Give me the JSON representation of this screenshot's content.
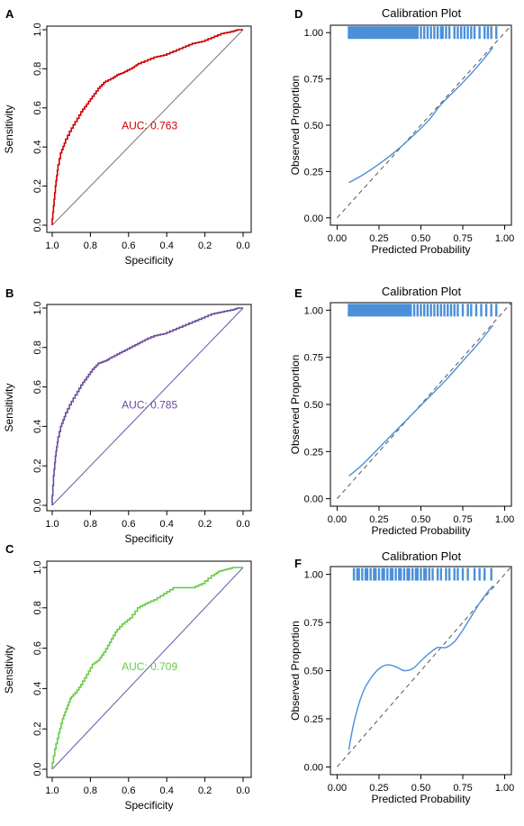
{
  "chart_data": [
    {
      "type": "line",
      "panel_label": "A",
      "xlabel": "Specificity",
      "ylabel": "Sensitivity",
      "x_ticks": [
        "1.0",
        "0.8",
        "0.6",
        "0.4",
        "0.2",
        "0.0"
      ],
      "y_ticks": [
        "0.0",
        "0.2",
        "0.4",
        "0.6",
        "0.8",
        "1.0"
      ],
      "xlim": [
        1.0,
        0.0
      ],
      "ylim": [
        0.0,
        1.0
      ],
      "annotation": "AUC: 0.763",
      "color": "#cc0000",
      "series": [
        {
          "specificity": [
            1.0,
            0.99,
            0.98,
            0.97,
            0.95,
            0.93,
            0.9,
            0.87,
            0.84,
            0.81,
            0.78,
            0.75,
            0.72,
            0.68,
            0.65,
            0.62,
            0.58,
            0.55,
            0.5,
            0.45,
            0.4,
            0.35,
            0.3,
            0.25,
            0.2,
            0.15,
            0.1,
            0.05,
            0.02,
            0.0
          ],
          "sensitivity": [
            0.0,
            0.1,
            0.2,
            0.28,
            0.37,
            0.42,
            0.48,
            0.53,
            0.58,
            0.62,
            0.66,
            0.7,
            0.73,
            0.75,
            0.77,
            0.78,
            0.8,
            0.82,
            0.84,
            0.86,
            0.87,
            0.89,
            0.91,
            0.93,
            0.94,
            0.96,
            0.98,
            0.99,
            1.0,
            1.0
          ]
        }
      ]
    },
    {
      "type": "line",
      "panel_label": "B",
      "xlabel": "Specificity",
      "ylabel": "Sensitivity",
      "x_ticks": [
        "1.0",
        "0.8",
        "0.6",
        "0.4",
        "0.2",
        "0.0"
      ],
      "y_ticks": [
        "0.0",
        "0.2",
        "0.4",
        "0.6",
        "0.8",
        "1.0"
      ],
      "xlim": [
        1.0,
        0.0
      ],
      "ylim": [
        0.0,
        1.0
      ],
      "annotation": "AUC: 0.785",
      "color": "#6a4a9a",
      "series": [
        {
          "specificity": [
            1.0,
            0.99,
            0.98,
            0.97,
            0.95,
            0.93,
            0.9,
            0.87,
            0.84,
            0.81,
            0.78,
            0.75,
            0.72,
            0.7,
            0.66,
            0.62,
            0.58,
            0.54,
            0.5,
            0.45,
            0.4,
            0.35,
            0.3,
            0.25,
            0.2,
            0.15,
            0.1,
            0.05,
            0.02,
            0.0
          ],
          "sensitivity": [
            0.0,
            0.15,
            0.25,
            0.32,
            0.4,
            0.45,
            0.51,
            0.56,
            0.61,
            0.65,
            0.69,
            0.72,
            0.73,
            0.74,
            0.76,
            0.78,
            0.8,
            0.82,
            0.84,
            0.86,
            0.87,
            0.89,
            0.91,
            0.93,
            0.95,
            0.97,
            0.98,
            0.99,
            1.0,
            1.0
          ]
        }
      ]
    },
    {
      "type": "line",
      "panel_label": "C",
      "xlabel": "Specificity",
      "ylabel": "Sensitivity",
      "x_ticks": [
        "1.0",
        "0.8",
        "0.6",
        "0.4",
        "0.2",
        "0.0"
      ],
      "y_ticks": [
        "0.0",
        "0.2",
        "0.4",
        "0.6",
        "0.8",
        "1.0"
      ],
      "xlim": [
        1.0,
        0.0
      ],
      "ylim": [
        0.0,
        1.0
      ],
      "annotation": "AUC: 0.709",
      "color": "#66cc44",
      "series": [
        {
          "specificity": [
            1.0,
            0.98,
            0.96,
            0.94,
            0.92,
            0.9,
            0.87,
            0.84,
            0.81,
            0.78,
            0.75,
            0.72,
            0.69,
            0.66,
            0.62,
            0.58,
            0.54,
            0.5,
            0.45,
            0.4,
            0.35,
            0.3,
            0.25,
            0.2,
            0.15,
            0.12,
            0.08,
            0.04,
            0.01,
            0.0
          ],
          "sensitivity": [
            0.0,
            0.1,
            0.18,
            0.25,
            0.3,
            0.35,
            0.38,
            0.42,
            0.47,
            0.52,
            0.54,
            0.58,
            0.63,
            0.68,
            0.72,
            0.75,
            0.8,
            0.82,
            0.84,
            0.87,
            0.9,
            0.9,
            0.9,
            0.92,
            0.96,
            0.98,
            0.99,
            1.0,
            1.0,
            1.0
          ]
        }
      ]
    },
    {
      "type": "line",
      "panel_label": "D",
      "title": "Calibration Plot",
      "xlabel": "Predicted Probability",
      "ylabel": "Observed Proportion",
      "x_ticks": [
        "0.00",
        "0.25",
        "0.50",
        "0.75",
        "1.00"
      ],
      "y_ticks": [
        "0.00",
        "0.25",
        "0.50",
        "0.75",
        "1.00"
      ],
      "xlim": [
        0.0,
        1.0
      ],
      "ylim": [
        0.0,
        1.0
      ],
      "color": "#4a90d9",
      "series": [
        {
          "x": [
            0.07,
            0.15,
            0.25,
            0.35,
            0.45,
            0.55,
            0.6,
            0.65,
            0.75,
            0.85,
            0.93
          ],
          "y": [
            0.19,
            0.23,
            0.29,
            0.36,
            0.44,
            0.53,
            0.59,
            0.64,
            0.73,
            0.83,
            0.92
          ]
        }
      ],
      "rug": [
        0.07,
        0.08,
        0.09,
        0.1,
        0.11,
        0.12,
        0.13,
        0.14,
        0.15,
        0.16,
        0.17,
        0.18,
        0.19,
        0.2,
        0.21,
        0.22,
        0.23,
        0.24,
        0.25,
        0.26,
        0.27,
        0.28,
        0.29,
        0.3,
        0.31,
        0.32,
        0.33,
        0.34,
        0.35,
        0.36,
        0.37,
        0.38,
        0.39,
        0.4,
        0.41,
        0.42,
        0.43,
        0.44,
        0.45,
        0.46,
        0.47,
        0.48,
        0.5,
        0.52,
        0.54,
        0.56,
        0.58,
        0.6,
        0.62,
        0.63,
        0.65,
        0.67,
        0.7,
        0.72,
        0.74,
        0.76,
        0.78,
        0.8,
        0.82,
        0.85,
        0.88,
        0.9,
        0.92,
        0.95
      ]
    },
    {
      "type": "line",
      "panel_label": "E",
      "title": "Calibration Plot",
      "xlabel": "Predicted Probability",
      "ylabel": "Observed Proportion",
      "x_ticks": [
        "0.00",
        "0.25",
        "0.50",
        "0.75",
        "1.00"
      ],
      "y_ticks": [
        "0.00",
        "0.25",
        "0.50",
        "0.75",
        "1.00"
      ],
      "xlim": [
        0.0,
        1.0
      ],
      "ylim": [
        0.0,
        1.0
      ],
      "color": "#4a90d9",
      "series": [
        {
          "x": [
            0.07,
            0.15,
            0.25,
            0.35,
            0.45,
            0.55,
            0.65,
            0.75,
            0.85,
            0.93
          ],
          "y": [
            0.12,
            0.18,
            0.27,
            0.36,
            0.45,
            0.54,
            0.63,
            0.73,
            0.83,
            0.92
          ]
        }
      ],
      "rug": [
        0.07,
        0.08,
        0.09,
        0.1,
        0.11,
        0.12,
        0.13,
        0.14,
        0.15,
        0.16,
        0.17,
        0.18,
        0.19,
        0.2,
        0.21,
        0.22,
        0.23,
        0.24,
        0.25,
        0.26,
        0.27,
        0.28,
        0.29,
        0.3,
        0.31,
        0.32,
        0.33,
        0.34,
        0.35,
        0.36,
        0.37,
        0.38,
        0.39,
        0.4,
        0.41,
        0.42,
        0.43,
        0.44,
        0.46,
        0.48,
        0.5,
        0.52,
        0.54,
        0.56,
        0.58,
        0.6,
        0.62,
        0.64,
        0.66,
        0.68,
        0.7,
        0.72,
        0.75,
        0.78,
        0.8,
        0.83,
        0.86,
        0.89,
        0.92,
        0.95
      ]
    },
    {
      "type": "line",
      "panel_label": "F",
      "title": "Calibration Plot",
      "xlabel": "Predicted Probability",
      "ylabel": "Observed Proportion",
      "x_ticks": [
        "0.00",
        "0.25",
        "0.50",
        "0.75",
        "1.00"
      ],
      "y_ticks": [
        "0.00",
        "0.25",
        "0.50",
        "0.75",
        "1.00"
      ],
      "xlim": [
        0.0,
        1.0
      ],
      "ylim": [
        0.0,
        1.0
      ],
      "color": "#4a90d9",
      "series": [
        {
          "x": [
            0.07,
            0.1,
            0.15,
            0.2,
            0.25,
            0.3,
            0.35,
            0.4,
            0.45,
            0.5,
            0.55,
            0.6,
            0.65,
            0.7,
            0.75,
            0.8,
            0.85,
            0.9,
            0.93
          ],
          "y": [
            0.09,
            0.23,
            0.38,
            0.46,
            0.51,
            0.53,
            0.52,
            0.5,
            0.51,
            0.55,
            0.59,
            0.62,
            0.62,
            0.65,
            0.71,
            0.78,
            0.85,
            0.91,
            0.94
          ]
        }
      ],
      "rug": [
        0.1,
        0.12,
        0.13,
        0.15,
        0.17,
        0.18,
        0.2,
        0.22,
        0.23,
        0.25,
        0.27,
        0.28,
        0.3,
        0.32,
        0.33,
        0.35,
        0.37,
        0.38,
        0.4,
        0.42,
        0.43,
        0.45,
        0.47,
        0.48,
        0.5,
        0.52,
        0.53,
        0.55,
        0.57,
        0.6,
        0.62,
        0.65,
        0.67,
        0.7,
        0.72,
        0.75,
        0.78,
        0.82,
        0.85,
        0.88,
        0.92
      ]
    }
  ]
}
